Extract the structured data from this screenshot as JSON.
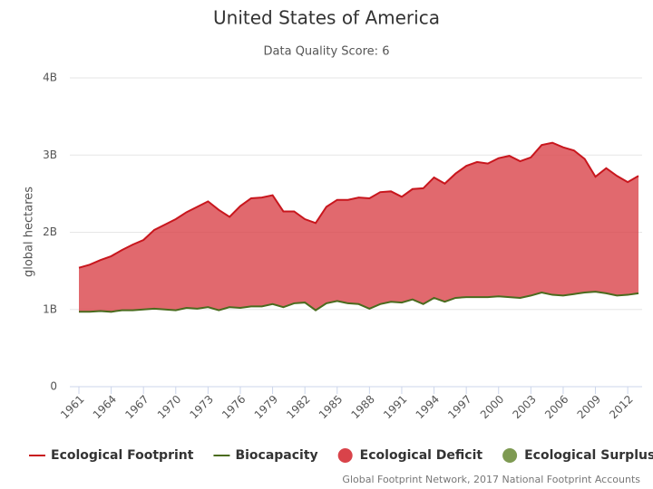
{
  "chart_data": {
    "type": "area",
    "title": "United States of America",
    "subtitle": "Data Quality Score: 6",
    "ylabel": "global hectares",
    "credits": "Global Footprint Network, 2017 National Footprint Accounts",
    "x": [
      1961,
      1962,
      1963,
      1964,
      1965,
      1966,
      1967,
      1968,
      1969,
      1970,
      1971,
      1972,
      1973,
      1974,
      1975,
      1976,
      1977,
      1978,
      1979,
      1980,
      1981,
      1982,
      1983,
      1984,
      1985,
      1986,
      1987,
      1988,
      1989,
      1990,
      1991,
      1992,
      1993,
      1994,
      1995,
      1996,
      1997,
      1998,
      1999,
      2000,
      2001,
      2002,
      2003,
      2004,
      2005,
      2006,
      2007,
      2008,
      2009,
      2010,
      2011,
      2012,
      2013
    ],
    "series": [
      {
        "name": "Ecological Footprint",
        "color": "#c8161d",
        "values": [
          1540000000.0,
          1580000000.0,
          1640000000.0,
          1690000000.0,
          1770000000.0,
          1840000000.0,
          1900000000.0,
          2030000000.0,
          2100000000.0,
          2170000000.0,
          2260000000.0,
          2330000000.0,
          2400000000.0,
          2290000000.0,
          2200000000.0,
          2340000000.0,
          2440000000.0,
          2450000000.0,
          2480000000.0,
          2270000000.0,
          2270000000.0,
          2170000000.0,
          2120000000.0,
          2330000000.0,
          2420000000.0,
          2420000000.0,
          2450000000.0,
          2440000000.0,
          2520000000.0,
          2530000000.0,
          2460000000.0,
          2560000000.0,
          2570000000.0,
          2710000000.0,
          2630000000.0,
          2760000000.0,
          2860000000.0,
          2910000000.0,
          2890000000.0,
          2960000000.0,
          2990000000.0,
          2920000000.0,
          2970000000.0,
          3130000000.0,
          3160000000.0,
          3100000000.0,
          3060000000.0,
          2950000000.0,
          2720000000.0,
          2830000000.0,
          2730000000.0,
          2650000000.0,
          2730000000.0
        ]
      },
      {
        "name": "Biocapacity",
        "color": "#4a6b1e",
        "values": [
          970000000.0,
          970000000.0,
          980000000.0,
          970000000.0,
          990000000.0,
          990000000.0,
          1000000000.0,
          1010000000.0,
          1000000000.0,
          990000000.0,
          1020000000.0,
          1010000000.0,
          1030000000.0,
          990000000.0,
          1030000000.0,
          1020000000.0,
          1040000000.0,
          1040000000.0,
          1070000000.0,
          1030000000.0,
          1080000000.0,
          1090000000.0,
          990000000.0,
          1080000000.0,
          1110000000.0,
          1080000000.0,
          1070000000.0,
          1010000000.0,
          1070000000.0,
          1100000000.0,
          1090000000.0,
          1130000000.0,
          1070000000.0,
          1150000000.0,
          1100000000.0,
          1150000000.0,
          1160000000.0,
          1160000000.0,
          1160000000.0,
          1170000000.0,
          1160000000.0,
          1150000000.0,
          1180000000.0,
          1220000000.0,
          1190000000.0,
          1180000000.0,
          1200000000.0,
          1220000000.0,
          1230000000.0,
          1210000000.0,
          1180000000.0,
          1190000000.0,
          1210000000.0
        ]
      }
    ],
    "areas": [
      {
        "name": "Ecological Deficit",
        "color": "#d9434a"
      },
      {
        "name": "Ecological Surplus",
        "color": "#7e9a52"
      }
    ],
    "xlim": [
      1961,
      2013
    ],
    "xticks": [
      1961,
      1964,
      1967,
      1970,
      1973,
      1976,
      1979,
      1982,
      1985,
      1988,
      1991,
      1994,
      1997,
      2000,
      2003,
      2006,
      2009,
      2012
    ],
    "ylim": [
      0,
      4000000000
    ],
    "yticks": [
      0,
      {
        "value": 1000000000,
        "label": "1B"
      },
      {
        "value": 2000000000,
        "label": "2B"
      },
      {
        "value": 3000000000,
        "label": "3B"
      },
      {
        "value": 4000000000,
        "label": "4B"
      }
    ],
    "grid": true
  }
}
